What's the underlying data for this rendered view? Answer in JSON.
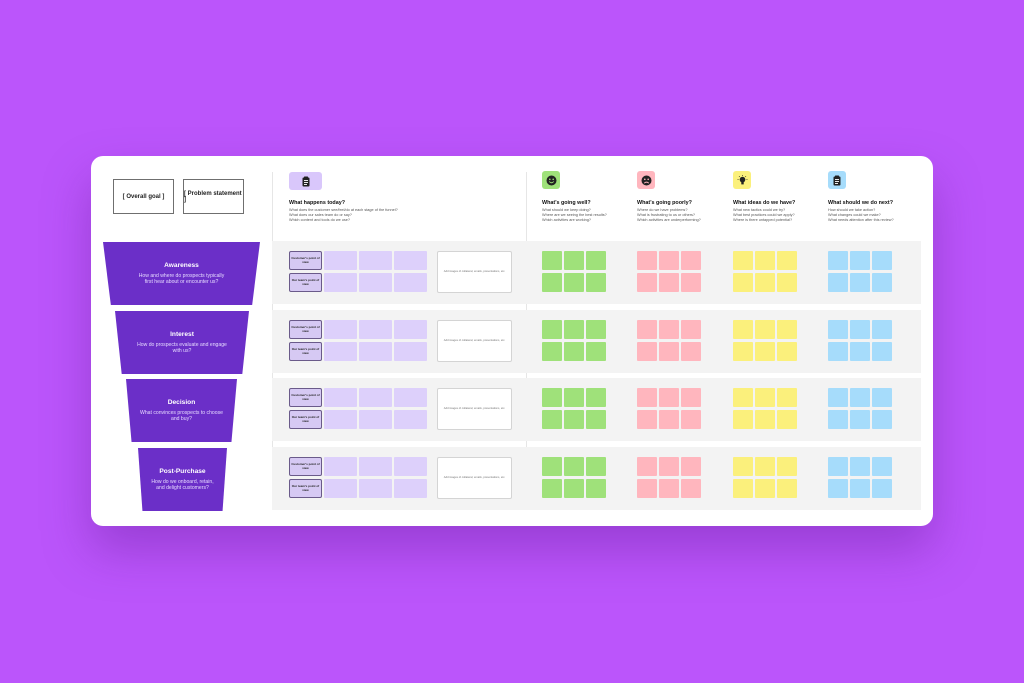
{
  "board": {
    "overall_goal": "[ Overall goal ]",
    "problem_statement": "[ Problem statement ]"
  },
  "columns": [
    {
      "icon": "clipboard-icon",
      "color": "#d9c7fb",
      "title": "What happens today?",
      "questions": [
        "What does the customer see/feel/do at each stage of the funnel?",
        "What does our sales team do or say?",
        "Which content and tools do we use?"
      ]
    },
    {
      "icon": "smiley-face-icon",
      "color": "#9fe17a",
      "title": "What’s going well?",
      "questions": [
        "What should we keep doing?",
        "Where are we seeing the best results?",
        "Which activities are working?"
      ]
    },
    {
      "icon": "frowning-face-icon",
      "color": "#ffb6be",
      "title": "What’s going poorly?",
      "questions": [
        "Where do we have problems?",
        "What is frustrating to us or others?",
        "Which activities are underperforming?"
      ]
    },
    {
      "icon": "lightbulb-icon",
      "color": "#fbf07c",
      "title": "What ideas do we have?",
      "questions": [
        "What new tactics could we try?",
        "What best practices could we apply?",
        "Where is there untapped potential?"
      ]
    },
    {
      "icon": "clipboard-icon",
      "color": "#a6dcfb",
      "title": "What should we do next?",
      "questions": [
        "How should we take action?",
        "What changes could we make?",
        "What needs attention after this review?"
      ]
    }
  ],
  "stages": [
    {
      "title": "Awareness",
      "description": "How and where do prospects typically first hear about or encounter us?"
    },
    {
      "title": "Interest",
      "description": "How do prospects evaluate and engage with us?"
    },
    {
      "title": "Decision",
      "description": "What convinces prospects to choose and buy?"
    },
    {
      "title": "Post-Purchase",
      "description": "How do we onboard, retain, and delight customers?"
    }
  ],
  "row_labels": {
    "customer_pov": "Customer's point of view",
    "team_pov": "Our team's point of view",
    "note": "Add images of collateral, emails, presentations, etc."
  }
}
